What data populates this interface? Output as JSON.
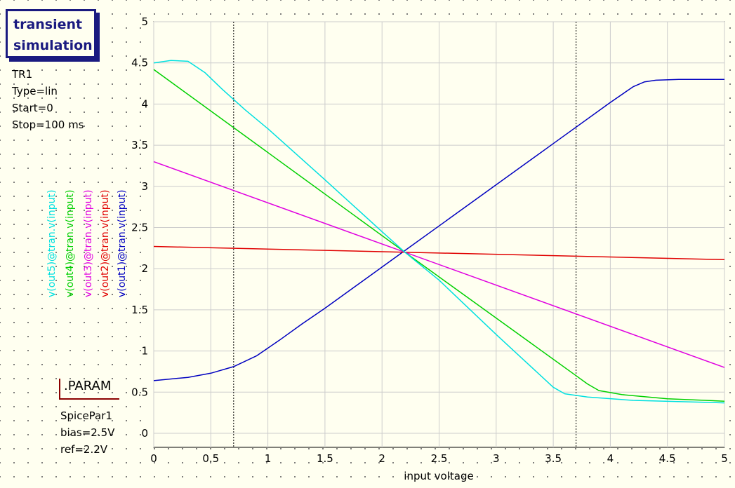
{
  "sim_block": {
    "title": "transient\nsimulation",
    "props": [
      "TR1",
      "Type=lin",
      "Start=0",
      "Stop=100 ms"
    ]
  },
  "param_block": {
    "title": ".PARAM",
    "props": [
      "SpicePar1",
      "bias=2.5V",
      "ref=2.2V"
    ]
  },
  "chart_data": {
    "type": "line",
    "xlabel": "input voltage",
    "xlim": [
      0,
      5
    ],
    "ylim": [
      0,
      5
    ],
    "xticks": [
      "0",
      "0.5",
      "1",
      "1.5",
      "2",
      "2.5",
      "3",
      "3.5",
      "4",
      "4.5",
      "5"
    ],
    "yticks": [
      "0",
      "0.5",
      "1",
      "1.5",
      "2",
      "2.5",
      "3",
      "3.5",
      "4",
      "4.5",
      "5"
    ],
    "grid": true,
    "markers_x": [
      0.7,
      3.7
    ],
    "series": [
      {
        "name": "v(out1)@tran.v(input)",
        "color": "#0000c0",
        "x": [
          0,
          0.3,
          0.5,
          0.7,
          0.9,
          1.1,
          1.3,
          1.5,
          2.0,
          2.2,
          2.5,
          3.0,
          3.5,
          4.0,
          4.2,
          4.3,
          4.4,
          4.6,
          5.0
        ],
        "y": [
          0.64,
          0.68,
          0.73,
          0.81,
          0.94,
          1.13,
          1.33,
          1.52,
          2.02,
          2.22,
          2.52,
          3.02,
          3.52,
          4.02,
          4.21,
          4.27,
          4.29,
          4.3,
          4.3
        ]
      },
      {
        "name": "v(out2)@tran.v(input)",
        "color": "#e00000",
        "x": [
          0,
          2.2,
          5.0
        ],
        "y": [
          2.27,
          2.2,
          2.11
        ]
      },
      {
        "name": "v(out3)@tran.v(input)",
        "color": "#e000e0",
        "x": [
          0,
          2.2,
          5.0
        ],
        "y": [
          3.3,
          2.2,
          0.8
        ]
      },
      {
        "name": "v(out4)@tran.v(input)",
        "color": "#00d000",
        "x": [
          0,
          2.2,
          3.7,
          3.8,
          3.9,
          4.1,
          4.5,
          5.0
        ],
        "y": [
          4.42,
          2.2,
          0.7,
          0.6,
          0.52,
          0.47,
          0.42,
          0.39
        ]
      },
      {
        "name": "v(out5)@tran.v(input)",
        "color": "#00e0e0",
        "x": [
          0,
          0.15,
          0.3,
          0.45,
          0.6,
          0.8,
          1.0,
          1.5,
          2.0,
          2.2,
          2.5,
          3.0,
          3.5,
          3.6,
          3.8,
          4.2,
          5.0
        ],
        "y": [
          4.5,
          4.53,
          4.52,
          4.38,
          4.18,
          3.93,
          3.7,
          3.08,
          2.45,
          2.2,
          1.86,
          1.2,
          0.56,
          0.48,
          0.44,
          0.4,
          0.37
        ]
      }
    ]
  }
}
